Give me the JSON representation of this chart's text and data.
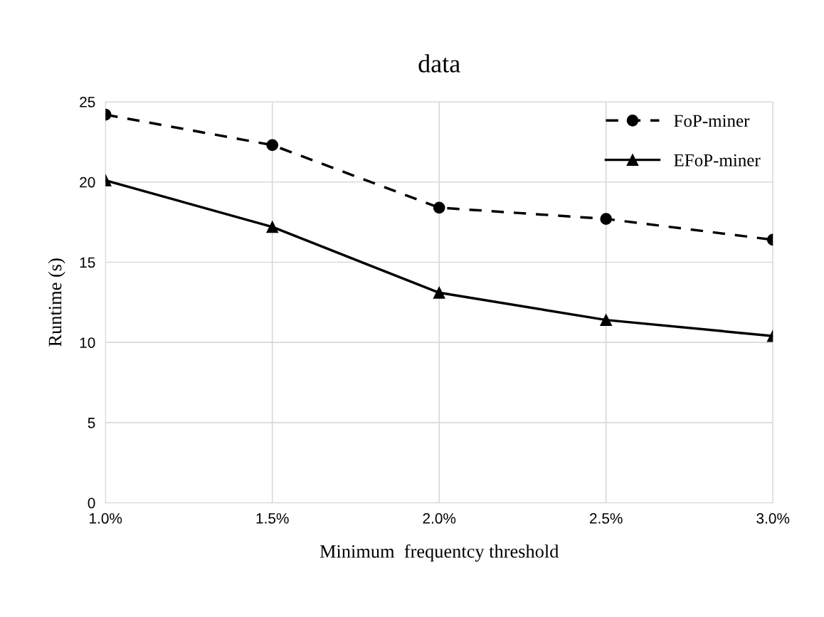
{
  "chart_data": {
    "type": "line",
    "title": "data",
    "xlabel": "Minimum  frequentcy threshold",
    "ylabel": "Runtime (s)",
    "categories": [
      "1.0%",
      "1.5%",
      "2.0%",
      "2.5%",
      "3.0%"
    ],
    "series": [
      {
        "name": "FoP-miner",
        "color": "#000000",
        "values": [
          24.2,
          22.3,
          18.4,
          17.7,
          16.4
        ],
        "marker": "circle",
        "line_style": "dashed"
      },
      {
        "name": "EFoP-miner",
        "color": "#000000",
        "values": [
          20.1,
          17.2,
          13.1,
          11.4,
          10.4
        ],
        "marker": "triangle",
        "line_style": "solid"
      }
    ],
    "ylim": [
      0,
      25
    ],
    "yticks": [
      0,
      5,
      10,
      15,
      20,
      25
    ],
    "grid": true,
    "legend": "top right"
  }
}
